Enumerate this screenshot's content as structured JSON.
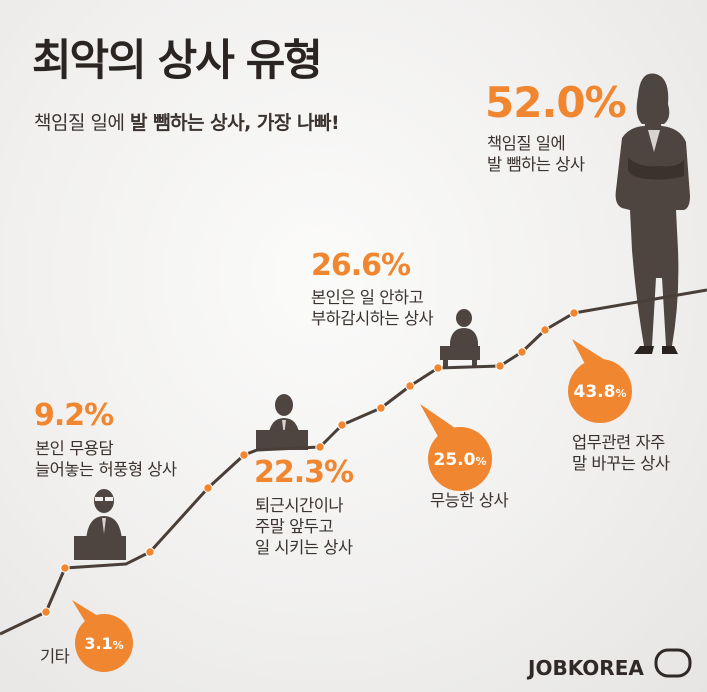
{
  "header": {
    "title": "최악의 상사 유형",
    "subtitle_pre": "책임질 일에 ",
    "subtitle_bold": "발 뺌하는 상사, 가장 나빠!"
  },
  "chart_data": {
    "type": "bar",
    "title": "최악의 상사 유형",
    "subtitle": "책임질 일에 발 뺌하는 상사, 가장 나빠!",
    "unit": "%",
    "categories": [
      "기타",
      "본인 무용담 늘어놓는 허풍형 상사",
      "퇴근시간이나 주말 앞두고 일 시키는 상사",
      "무능한 상사",
      "본인은 일 안하고 부하감시하는 상사",
      "업무관련 자주 말 바꾸는 상사",
      "책임질 일에 발 뺌하는 상사"
    ],
    "values": [
      3.1,
      9.2,
      22.3,
      25.0,
      26.6,
      43.8,
      52.0
    ],
    "value_labels": [
      "3.1%",
      "9.2%",
      "22.3%",
      "25.0%",
      "26.6%",
      "43.8%",
      "52.0%"
    ],
    "label_lines": [
      [
        "기타"
      ],
      [
        "본인 무용담",
        "늘어놓는 허풍형 상사"
      ],
      [
        "퇴근시간이나",
        "주말 앞두고",
        "일 시키는 상사"
      ],
      [
        "무능한 상사"
      ],
      [
        "본인은 일 안하고",
        "부하감시하는 상사"
      ],
      [
        "업무관련 자주",
        "말 바꾸는 상사"
      ],
      [
        "책임질 일에",
        "발 뺌하는 상사"
      ]
    ],
    "colors": {
      "accent": "#f0862f",
      "line": "#4a3e38",
      "silhouette": "#4f4540",
      "text": "#3a3330"
    }
  },
  "brand": {
    "logo": "JOBKOREA"
  }
}
